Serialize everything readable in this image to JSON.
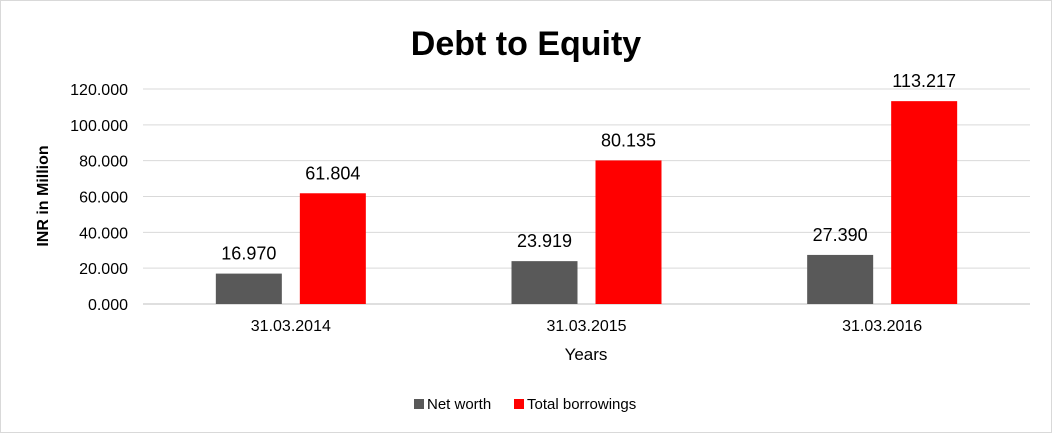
{
  "chart_data": {
    "type": "bar",
    "title": "Debt to Equity",
    "xlabel": "Years",
    "ylabel": "INR in Million",
    "categories": [
      "31.03.2014",
      "31.03.2015",
      "31.03.2016"
    ],
    "series": [
      {
        "name": "Net worth",
        "color": "#595959",
        "values": [
          16.97,
          23.919,
          27.39
        ],
        "labels": [
          "16.970",
          "23.919",
          "27.390"
        ]
      },
      {
        "name": "Total borrowings",
        "color": "#ff0000",
        "values": [
          61.804,
          80.135,
          113.217
        ],
        "labels": [
          "61.804",
          "80.135",
          "113.217"
        ]
      }
    ],
    "ylim": [
      0,
      120
    ],
    "yticks": [
      0,
      20,
      40,
      60,
      80,
      100,
      120
    ],
    "ytick_labels": [
      "0.000",
      "20.000",
      "40.000",
      "60.000",
      "80.000",
      "100.000",
      "120.000"
    ],
    "grid": true,
    "legend_position": "bottom"
  }
}
